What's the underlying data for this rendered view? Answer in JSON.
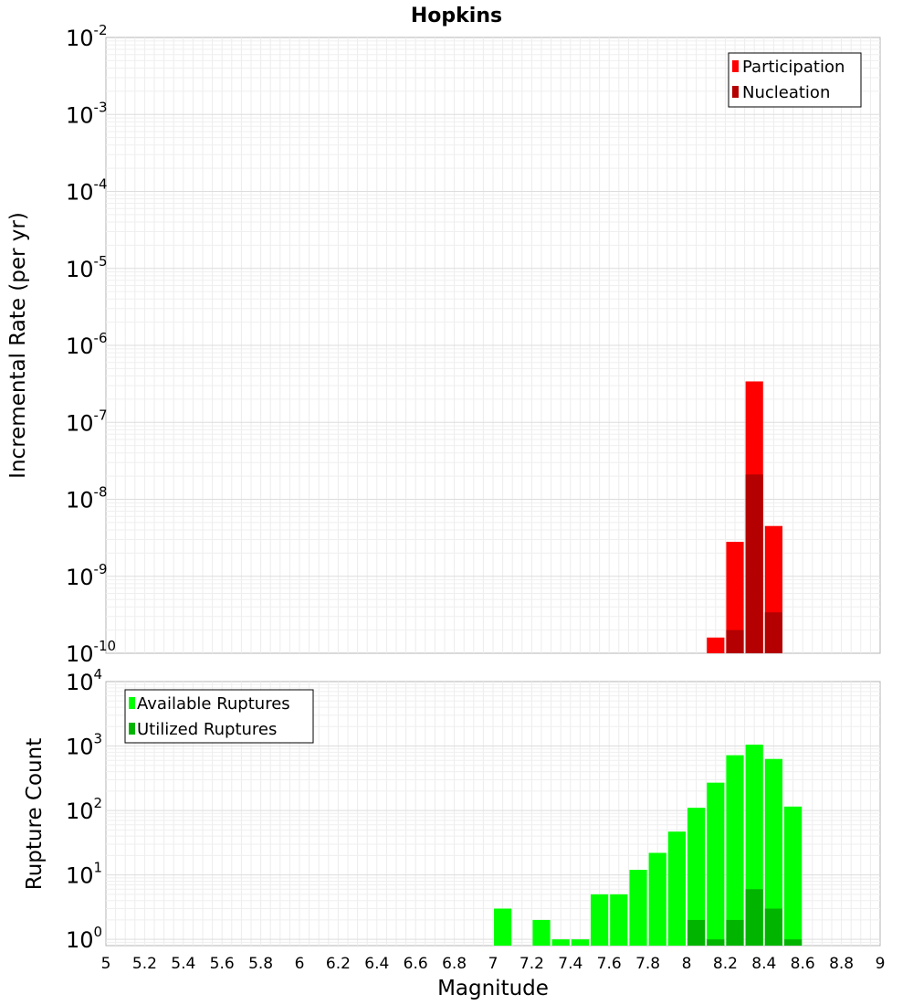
{
  "chart_data": [
    {
      "type": "bar",
      "title": "Hopkins",
      "xlabel": "",
      "ylabel": "Incremental Rate (per yr)",
      "yscale": "log",
      "ylim": [
        1e-10,
        0.01
      ],
      "xlim": [
        5,
        9
      ],
      "grid": true,
      "legend_position": "top-right",
      "bin_width": 0.1,
      "ytick_exponents": [
        "-10",
        "-9",
        "-8",
        "-7",
        "-6",
        "-5",
        "-4",
        "-3",
        "-2"
      ],
      "series": [
        {
          "name": "Participation",
          "color": "#ff0000",
          "x": [
            8.15,
            8.25,
            8.35,
            8.45
          ],
          "values": [
            1.6e-10,
            2.8e-09,
            3.4e-07,
            4.5e-09
          ]
        },
        {
          "name": "Nucleation",
          "color": "#b40000",
          "x": [
            8.25,
            8.35,
            8.45
          ],
          "values": [
            2e-10,
            2.1e-08,
            3.4e-10
          ]
        }
      ]
    },
    {
      "type": "bar",
      "title": "",
      "xlabel": "Magnitude",
      "ylabel": "Rupture Count",
      "yscale": "log",
      "ylim": [
        0.8,
        10000
      ],
      "xlim": [
        5,
        9
      ],
      "grid": true,
      "legend_position": "top-left",
      "bin_width": 0.1,
      "ytick_exponents": [
        "0",
        "1",
        "2",
        "3",
        "4"
      ],
      "xticks": [
        "5",
        "5.2",
        "5.4",
        "5.6",
        "5.8",
        "6",
        "6.2",
        "6.4",
        "6.6",
        "6.8",
        "7",
        "7.2",
        "7.4",
        "7.6",
        "7.8",
        "8",
        "8.2",
        "8.4",
        "8.6",
        "8.8",
        "9"
      ],
      "series": [
        {
          "name": "Available Ruptures",
          "color": "#00ff00",
          "x": [
            7.05,
            7.25,
            7.35,
            7.45,
            7.55,
            7.65,
            7.75,
            7.85,
            7.95,
            8.05,
            8.15,
            8.25,
            8.35,
            8.45,
            8.55
          ],
          "values": [
            3,
            2,
            1,
            1,
            5,
            5,
            12,
            22,
            47,
            110,
            270,
            720,
            1050,
            630,
            115
          ]
        },
        {
          "name": "Utilized Ruptures",
          "color": "#00b400",
          "x": [
            8.05,
            8.15,
            8.25,
            8.35,
            8.45,
            8.55
          ],
          "values": [
            2,
            1,
            2,
            6,
            3,
            1
          ]
        }
      ]
    }
  ]
}
